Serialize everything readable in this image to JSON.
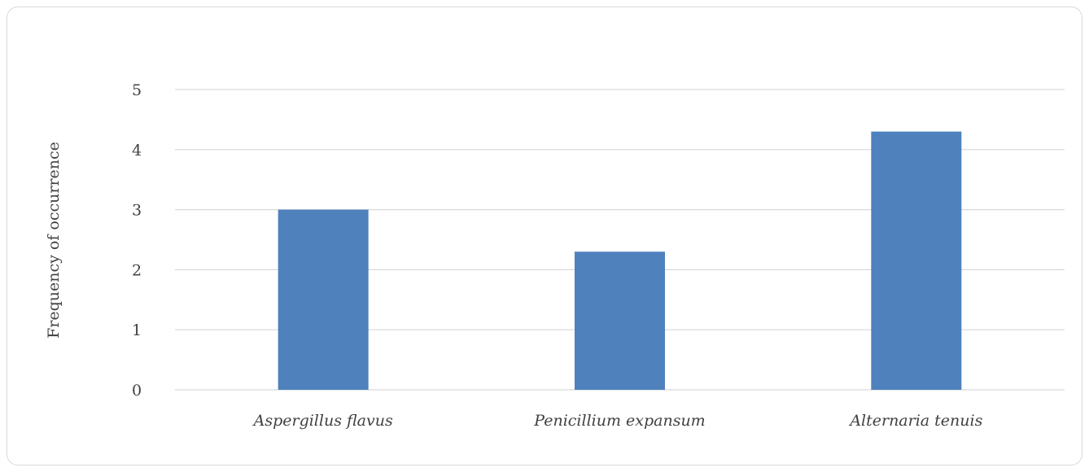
{
  "chart_data": {
    "type": "bar",
    "title": "",
    "xlabel": "",
    "ylabel": "Frequency of occurrence",
    "categories": [
      "Aspergillus flavus",
      "Penicillium expansum",
      "Alternaria tenuis"
    ],
    "values": [
      3.0,
      2.3,
      4.3
    ],
    "ylim": [
      0,
      5
    ],
    "yticks": [
      "0",
      "1",
      "2",
      "3",
      "4",
      "5"
    ],
    "grid": true,
    "legend": "none",
    "bar_color": "#4f81bd",
    "grid_color": "#d9d9d9"
  }
}
